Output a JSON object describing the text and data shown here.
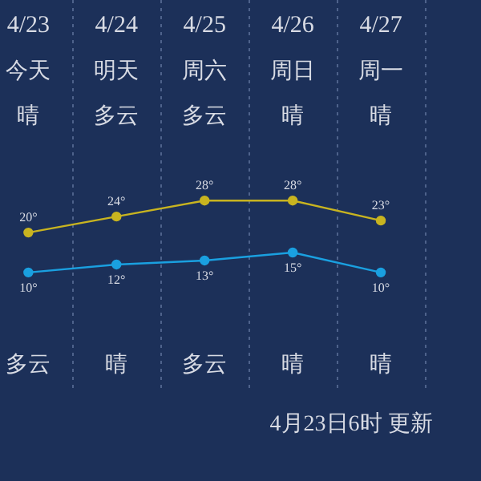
{
  "chart_data": {
    "type": "line",
    "categories": [
      "4/23",
      "4/24",
      "4/25",
      "4/26",
      "4/27"
    ],
    "series": [
      {
        "color": "#c8b420",
        "values": [
          20,
          24,
          28,
          28,
          23
        ],
        "value_labels": [
          "20°",
          "24°",
          "28°",
          "28°",
          "23°"
        ]
      },
      {
        "color": "#1aa0e0",
        "values": [
          10,
          12,
          13,
          15,
          10
        ],
        "value_labels": [
          "10°",
          "12°",
          "13°",
          "15°",
          "10°"
        ]
      }
    ],
    "grid": "x",
    "legend": false,
    "marker": "circle",
    "annotations": [
      "今天",
      "明天",
      "周六",
      "周日",
      "周一",
      "晴",
      "多云",
      "多云",
      "晴",
      "晴",
      "多云",
      "晴",
      "多云",
      "晴",
      "晴",
      "4月23日6时 更新"
    ]
  }
}
